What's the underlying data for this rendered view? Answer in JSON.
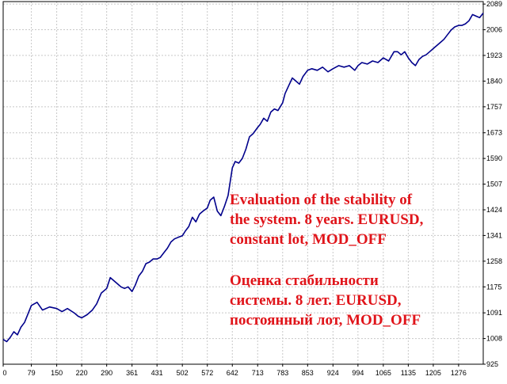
{
  "chart_data": {
    "type": "line",
    "title": "",
    "xlabel": "",
    "ylabel": "",
    "x_ticks": [
      "0",
      "79",
      "150",
      "220",
      "290",
      "361",
      "431",
      "502",
      "572",
      "642",
      "713",
      "783",
      "853",
      "924",
      "994",
      "1065",
      "1135",
      "1205",
      "1276"
    ],
    "y_ticks": [
      "925",
      "1008",
      "1091",
      "1175",
      "1258",
      "1341",
      "1424",
      "1507",
      "1590",
      "1673",
      "1757",
      "1840",
      "1923",
      "2006",
      "2089"
    ],
    "xlim": [
      0,
      1345
    ],
    "ylim": [
      925,
      2097
    ],
    "grid": true,
    "line_color": "#00008b",
    "x": [
      0,
      10,
      20,
      30,
      40,
      50,
      60,
      79,
      95,
      110,
      130,
      150,
      165,
      180,
      200,
      210,
      220,
      235,
      250,
      262,
      275,
      290,
      300,
      310,
      320,
      330,
      340,
      350,
      361,
      370,
      380,
      390,
      400,
      410,
      420,
      431,
      440,
      450,
      460,
      470,
      480,
      490,
      502,
      510,
      520,
      530,
      540,
      550,
      560,
      572,
      580,
      590,
      600,
      610,
      620,
      630,
      642,
      650,
      660,
      670,
      680,
      690,
      700,
      713,
      720,
      730,
      740,
      750,
      760,
      770,
      783,
      790,
      800,
      810,
      820,
      830,
      840,
      853,
      865,
      880,
      895,
      910,
      924,
      940,
      955,
      970,
      985,
      994,
      1005,
      1020,
      1035,
      1050,
      1065,
      1080,
      1095,
      1105,
      1115,
      1125,
      1135,
      1145,
      1155,
      1165,
      1175,
      1185,
      1195,
      1205,
      1215,
      1225,
      1235,
      1245,
      1255,
      1265,
      1276,
      1285,
      1295,
      1305,
      1315,
      1325,
      1335,
      1345
    ],
    "y": [
      1005,
      998,
      1012,
      1030,
      1020,
      1045,
      1060,
      1115,
      1125,
      1100,
      1110,
      1105,
      1095,
      1105,
      1090,
      1080,
      1075,
      1085,
      1100,
      1120,
      1155,
      1170,
      1205,
      1195,
      1185,
      1175,
      1170,
      1175,
      1160,
      1180,
      1210,
      1225,
      1250,
      1255,
      1265,
      1265,
      1270,
      1285,
      1300,
      1320,
      1330,
      1335,
      1340,
      1355,
      1370,
      1400,
      1385,
      1410,
      1420,
      1430,
      1455,
      1465,
      1420,
      1405,
      1435,
      1470,
      1560,
      1580,
      1575,
      1590,
      1620,
      1660,
      1670,
      1690,
      1700,
      1720,
      1710,
      1740,
      1750,
      1745,
      1770,
      1800,
      1825,
      1850,
      1840,
      1830,
      1855,
      1875,
      1880,
      1875,
      1885,
      1870,
      1880,
      1890,
      1885,
      1890,
      1875,
      1890,
      1900,
      1895,
      1905,
      1900,
      1915,
      1905,
      1935,
      1935,
      1925,
      1935,
      1915,
      1900,
      1890,
      1910,
      1920,
      1925,
      1935,
      1945,
      1955,
      1965,
      1975,
      1990,
      2005,
      2015,
      2020,
      2020,
      2025,
      2035,
      2055,
      2050,
      2045,
      2060
    ]
  },
  "annotation_en": {
    "line1": "Evaluation of the stability of",
    "line2": "the system. 8 years. EURUSD,",
    "line3": "constant lot, MOD_OFF"
  },
  "annotation_ru": {
    "line1": "Оценка стабильности",
    "line2": "системы. 8 лет. EURUSD,",
    "line3": "постоянный лот, MOD_OFF"
  },
  "colors": {
    "line": "#00008b",
    "annotation": "#e0141a",
    "grid": "#c8c8c8",
    "axis": "#000000"
  }
}
